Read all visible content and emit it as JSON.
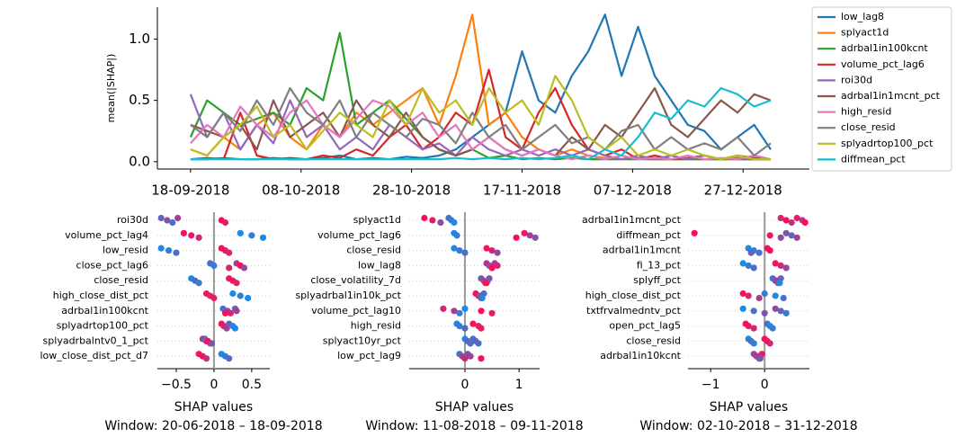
{
  "chart_data": [
    {
      "type": "line",
      "ylabel": "mean(|SHAP|)",
      "x": [
        "18-09-2018",
        "21-09-2018",
        "24-09-2018",
        "27-09-2018",
        "30-09-2018",
        "03-10-2018",
        "06-10-2018",
        "09-10-2018",
        "12-10-2018",
        "15-10-2018",
        "18-10-2018",
        "21-10-2018",
        "24-10-2018",
        "27-10-2018",
        "30-10-2018",
        "02-11-2018",
        "05-11-2018",
        "08-11-2018",
        "11-11-2018",
        "14-11-2018",
        "17-11-2018",
        "20-11-2018",
        "23-11-2018",
        "26-11-2018",
        "29-11-2018",
        "02-12-2018",
        "05-12-2018",
        "08-12-2018",
        "11-12-2018",
        "14-12-2018",
        "17-12-2018",
        "20-12-2018",
        "23-12-2018",
        "26-12-2018",
        "29-12-2018",
        "01-01-2019"
      ],
      "xlim": [
        "12-09-2018",
        "08-01-2019"
      ],
      "xticks": [
        "18-09-2018",
        "08-10-2018",
        "28-10-2018",
        "17-11-2018",
        "07-12-2018",
        "27-12-2018"
      ],
      "ylim": [
        -0.06,
        1.26
      ],
      "yticks": [
        {
          "value": 0,
          "label": "0.0"
        },
        {
          "value": 0.5,
          "label": "0.5"
        },
        {
          "value": 1,
          "label": "1.0"
        }
      ],
      "legend": "outside right",
      "series": [
        {
          "name": "low_lag8",
          "color": "#1f77b4",
          "values": [
            0.02,
            0.02,
            0.03,
            0.02,
            0.02,
            0.03,
            0.02,
            0.02,
            0.03,
            0.05,
            0.02,
            0.03,
            0.02,
            0.04,
            0.03,
            0.05,
            0.1,
            0.2,
            0.3,
            0.4,
            0.9,
            0.5,
            0.4,
            0.7,
            0.9,
            1.2,
            0.7,
            1.1,
            0.7,
            0.5,
            0.3,
            0.25,
            0.1,
            0.2,
            0.3,
            0.1
          ]
        },
        {
          "name": "splyact1d",
          "color": "#ff7f0e",
          "values": [
            0.1,
            0.05,
            0.2,
            0.1,
            0.3,
            0.4,
            0.2,
            0.1,
            0.3,
            0.2,
            0.4,
            0.3,
            0.4,
            0.5,
            0.6,
            0.3,
            0.7,
            1.2,
            0.3,
            0.4,
            0.2,
            0.1,
            0.05,
            0.1,
            0.05,
            0.03,
            0.02,
            0.03,
            0.02,
            0.02,
            0.02,
            0.02,
            0.02,
            0.02,
            0.02,
            0.02
          ]
        },
        {
          "name": "adrbal1in100kcnt",
          "color": "#2ca02c",
          "values": [
            0.2,
            0.5,
            0.4,
            0.3,
            0.35,
            0.4,
            0.3,
            0.6,
            0.5,
            1.05,
            0.3,
            0.4,
            0.5,
            0.35,
            0.2,
            0.1,
            0.05,
            0.1,
            0.03,
            0.05,
            0.02,
            0.03,
            0.02,
            0.03,
            0.02,
            0.02,
            0.02,
            0.02,
            0.02,
            0.02,
            0.02,
            0.02,
            0.02,
            0.02,
            0.02,
            0.02
          ]
        },
        {
          "name": "volume_pct_lag6",
          "color": "#d62728",
          "values": [
            0.02,
            0.03,
            0.02,
            0.4,
            0.05,
            0.02,
            0.03,
            0.02,
            0.05,
            0.03,
            0.1,
            0.05,
            0.2,
            0.3,
            0.1,
            0.2,
            0.4,
            0.3,
            0.75,
            0.2,
            0.1,
            0.4,
            0.6,
            0.3,
            0.1,
            0.05,
            0.1,
            0.02,
            0.05,
            0.02,
            0.03,
            0.05,
            0.02,
            0.05,
            0.03,
            0.02
          ]
        },
        {
          "name": "roi30d",
          "color": "#9467bd",
          "values": [
            0.55,
            0.2,
            0.4,
            0.1,
            0.3,
            0.15,
            0.5,
            0.2,
            0.3,
            0.1,
            0.2,
            0.1,
            0.3,
            0.2,
            0.1,
            0.15,
            0.05,
            0.2,
            0.1,
            0.05,
            0.1,
            0.05,
            0.1,
            0.05,
            0.1,
            0.05,
            0.02,
            0.05,
            0.02,
            0.05,
            0.02,
            0.05,
            0.02,
            0.03,
            0.02,
            0.02
          ]
        },
        {
          "name": "adrbal1in1mcnt_pct",
          "color": "#8c564b",
          "values": [
            0.3,
            0.25,
            0.2,
            0.3,
            0.1,
            0.5,
            0.2,
            0.3,
            0.4,
            0.2,
            0.5,
            0.3,
            0.2,
            0.4,
            0.2,
            0.1,
            0.05,
            0.1,
            0.2,
            0.1,
            0.05,
            0.1,
            0.05,
            0.2,
            0.1,
            0.3,
            0.2,
            0.4,
            0.6,
            0.3,
            0.2,
            0.35,
            0.5,
            0.4,
            0.55,
            0.5
          ]
        },
        {
          "name": "high_resid",
          "color": "#e377c2",
          "values": [
            0.15,
            0.3,
            0.2,
            0.45,
            0.3,
            0.2,
            0.4,
            0.5,
            0.3,
            0.2,
            0.35,
            0.5,
            0.45,
            0.3,
            0.4,
            0.2,
            0.3,
            0.1,
            0.2,
            0.1,
            0.05,
            0.1,
            0.05,
            0.02,
            0.05,
            0.02,
            0.05,
            0.02,
            0.03,
            0.02,
            0.05,
            0.02,
            0.03,
            0.02,
            0.05,
            0.02
          ]
        },
        {
          "name": "close_resid",
          "color": "#7f7f7f",
          "values": [
            0.3,
            0.2,
            0.4,
            0.25,
            0.5,
            0.3,
            0.6,
            0.4,
            0.3,
            0.5,
            0.2,
            0.4,
            0.3,
            0.2,
            0.35,
            0.3,
            0.15,
            0.4,
            0.2,
            0.3,
            0.1,
            0.2,
            0.3,
            0.15,
            0.2,
            0.1,
            0.25,
            0.3,
            0.1,
            0.2,
            0.1,
            0.15,
            0.1,
            0.2,
            0.05,
            0.15
          ]
        },
        {
          "name": "splyadrtop100_pct",
          "color": "#bcbd22",
          "values": [
            0.1,
            0.05,
            0.2,
            0.3,
            0.45,
            0.2,
            0.3,
            0.1,
            0.25,
            0.4,
            0.3,
            0.2,
            0.5,
            0.3,
            0.6,
            0.4,
            0.5,
            0.3,
            0.6,
            0.4,
            0.5,
            0.3,
            0.7,
            0.5,
            0.2,
            0.1,
            0.2,
            0.05,
            0.1,
            0.05,
            0.1,
            0.05,
            0.02,
            0.05,
            0.02,
            0.02
          ]
        },
        {
          "name": "diffmean_pct",
          "color": "#17becf",
          "values": [
            0.02,
            0.02,
            0.02,
            0.02,
            0.02,
            0.02,
            0.02,
            0.02,
            0.02,
            0.02,
            0.02,
            0.02,
            0.02,
            0.02,
            0.02,
            0.02,
            0.03,
            0.02,
            0.03,
            0.02,
            0.03,
            0.02,
            0.03,
            0.05,
            0.02,
            0.1,
            0.05,
            0.2,
            0.4,
            0.35,
            0.5,
            0.45,
            0.6,
            0.55,
            0.45,
            0.5
          ]
        }
      ]
    },
    {
      "type": "beeswarm",
      "xlabel": "SHAP values",
      "subtitle": "Window: 20-06-2018 – 18-09-2018",
      "xlim": [
        -0.75,
        0.74
      ],
      "xticks": [
        {
          "value": -0.5,
          "label": "−0.5"
        },
        0.0,
        0.5
      ],
      "colormap": [
        "#1e88e5",
        "#ff0d57"
      ],
      "rows": [
        {
          "name": "roi30d",
          "shap": [
            -0.7,
            -0.62,
            -0.55,
            -0.48,
            0.1,
            0.15
          ],
          "levels": [
            0.3,
            0.5,
            0.2,
            0.6,
            1,
            0.9
          ]
        },
        {
          "name": "volume_pct_lag4",
          "shap": [
            -0.4,
            -0.3,
            -0.2,
            0.35,
            0.5,
            0.65
          ],
          "levels": [
            1,
            0.9,
            0.8,
            0,
            0.1,
            0
          ]
        },
        {
          "name": "low_resid",
          "shap": [
            -0.7,
            -0.6,
            -0.5,
            0.1,
            0.15,
            0.2
          ],
          "levels": [
            0,
            0.1,
            0.2,
            1,
            0.9,
            0.8
          ]
        },
        {
          "name": "close_pct_lag6",
          "shap": [
            -0.05,
            0.0,
            0.2,
            0.3,
            0.35,
            0.4
          ],
          "levels": [
            0.2,
            0.1,
            0.8,
            0.6,
            1,
            0.5
          ]
        },
        {
          "name": "close_resid",
          "shap": [
            -0.3,
            -0.25,
            -0.2,
            0.2,
            0.25,
            0.3
          ],
          "levels": [
            0,
            0.2,
            0.1,
            0.9,
            1,
            0.8
          ]
        },
        {
          "name": "high_close_dist_pct",
          "shap": [
            -0.1,
            -0.05,
            0.0,
            0.25,
            0.35,
            0.45
          ],
          "levels": [
            1,
            0.8,
            0.9,
            0,
            0.1,
            0
          ]
        },
        {
          "name": "adrbal1in100kcnt",
          "shap": [
            0.12,
            0.18,
            0.22,
            0.28,
            0.3,
            0.15
          ],
          "levels": [
            0.2,
            0.5,
            0.8,
            0.3,
            0.6,
            1
          ]
        },
        {
          "name": "splyadrtop100_pct",
          "shap": [
            0.1,
            0.13,
            0.17,
            0.2,
            0.25,
            0.28
          ],
          "levels": [
            1,
            0.8,
            0.6,
            0.3,
            0.1,
            0
          ]
        },
        {
          "name": "splyadrbalntv0_1_pct",
          "shap": [
            -0.15,
            -0.1,
            -0.05,
            -0.12,
            -0.08,
            -0.03
          ],
          "levels": [
            0.6,
            0.8,
            0.5,
            0.3,
            1,
            0.4
          ]
        },
        {
          "name": "low_close_dist_pct_d7",
          "shap": [
            -0.2,
            -0.15,
            -0.1,
            0.1,
            0.15,
            0.2
          ],
          "levels": [
            0.9,
            1,
            0.7,
            0,
            0.1,
            0.2
          ]
        }
      ]
    },
    {
      "type": "beeswarm",
      "xlabel": "SHAP values",
      "subtitle": "Window: 11-08-2018 – 09-11-2018",
      "xlim": [
        -1.03,
        1.38
      ],
      "xticks": [
        0,
        1
      ],
      "colormap": [
        "#1e88e5",
        "#ff0d57"
      ],
      "rows": [
        {
          "name": "splyact1d",
          "shap": [
            -0.75,
            -0.6,
            -0.45,
            -0.3,
            -0.25,
            -0.2
          ],
          "levels": [
            1,
            0.9,
            0.5,
            0.2,
            0.1,
            0
          ]
        },
        {
          "name": "volume_pct_lag6",
          "shap": [
            -0.2,
            -0.15,
            0.95,
            1.1,
            1.2,
            1.3
          ],
          "levels": [
            0,
            0.1,
            1,
            0.9,
            0.6,
            0.4
          ]
        },
        {
          "name": "close_resid",
          "shap": [
            -0.2,
            -0.1,
            0.0,
            0.4,
            0.5,
            0.6
          ],
          "levels": [
            0,
            0.1,
            0.2,
            1,
            0.8,
            0.5
          ]
        },
        {
          "name": "low_lag8",
          "shap": [
            0.4,
            0.45,
            0.5,
            0.55,
            0.6,
            0.5
          ],
          "levels": [
            0.7,
            0.5,
            0.9,
            0.6,
            0.8,
            1
          ]
        },
        {
          "name": "close_volatility_7d",
          "shap": [
            0.3,
            0.35,
            0.4,
            0.45,
            0.42,
            0.38
          ],
          "levels": [
            0.4,
            0.6,
            0.8,
            0.5,
            0.3,
            1
          ]
        },
        {
          "name": "splyadrbal1in10k_pct",
          "shap": [
            0.2,
            0.25,
            0.3,
            0.35,
            0.28,
            0.32
          ],
          "levels": [
            1,
            0.8,
            0.6,
            0.2,
            0.4,
            0
          ]
        },
        {
          "name": "volume_pct_lag10",
          "shap": [
            -0.4,
            -0.2,
            -0.1,
            0.0,
            0.3,
            0.5
          ],
          "levels": [
            0.8,
            0.6,
            0.1,
            0.0,
            1,
            0.9
          ]
        },
        {
          "name": "high_resid",
          "shap": [
            -0.15,
            -0.1,
            0.0,
            0.15,
            0.25,
            0.3
          ],
          "levels": [
            0,
            0.1,
            0.2,
            1,
            0.8,
            0.9
          ]
        },
        {
          "name": "splyact10yr_pct",
          "shap": [
            0.0,
            0.05,
            0.1,
            0.15,
            0.2,
            0.25
          ],
          "levels": [
            0,
            0.3,
            0.2,
            0.1,
            0.4,
            0.2
          ]
        },
        {
          "name": "low_pct_lag9",
          "shap": [
            -0.1,
            -0.05,
            0.0,
            0.05,
            0.1,
            0.3
          ],
          "levels": [
            0.2,
            0.5,
            0.8,
            0.4,
            0.6,
            1
          ]
        }
      ]
    },
    {
      "type": "beeswarm",
      "xlabel": "SHAP values",
      "subtitle": "Window: 02-10-2018 – 31-12-2018",
      "xlim": [
        -1.42,
        0.83
      ],
      "xticks": [
        {
          "value": -1,
          "label": "−1"
        },
        0
      ],
      "colormap": [
        "#1e88e5",
        "#ff0d57"
      ],
      "rows": [
        {
          "name": "adrbal1in1mcnt_pct",
          "shap": [
            0.3,
            0.4,
            0.5,
            0.6,
            0.7,
            0.75
          ],
          "levels": [
            0.8,
            1,
            0.7,
            0.9,
            0.6,
            1
          ]
        },
        {
          "name": "diffmean_pct",
          "shap": [
            -1.3,
            0.1,
            0.3,
            0.4,
            0.5,
            0.6
          ],
          "levels": [
            1,
            0.9,
            0.5,
            0.4,
            0.3,
            0.6
          ]
        },
        {
          "name": "adrbal1in1mcnt",
          "shap": [
            -0.3,
            -0.2,
            -0.1,
            0.05,
            0.1,
            -0.25
          ],
          "levels": [
            0,
            0.1,
            0.2,
            0.9,
            1,
            0.3
          ]
        },
        {
          "name": "fi_13_pct",
          "shap": [
            -0.4,
            -0.3,
            -0.2,
            0.2,
            0.3,
            0.4
          ],
          "levels": [
            0,
            0.1,
            0.2,
            1,
            0.8,
            0.5
          ]
        },
        {
          "name": "splyff_pct",
          "shap": [
            0.15,
            0.2,
            0.25,
            0.3,
            0.22,
            0.28
          ],
          "levels": [
            0.2,
            0.1,
            0.5,
            0.3,
            0.6,
            0
          ]
        },
        {
          "name": "high_close_dist_pct",
          "shap": [
            -0.4,
            -0.3,
            -0.1,
            0.0,
            0.2,
            0.35
          ],
          "levels": [
            1,
            0.8,
            0.6,
            0.1,
            0,
            0.2
          ]
        },
        {
          "name": "txtfrvalmedntv_pct",
          "shap": [
            -0.4,
            -0.2,
            0.0,
            0.2,
            0.3,
            0.4
          ],
          "levels": [
            0,
            0.2,
            0.4,
            0.5,
            0.3,
            0.1
          ]
        },
        {
          "name": "open_pct_lag5",
          "shap": [
            -0.35,
            -0.3,
            -0.2,
            0.05,
            0.1,
            0.15
          ],
          "levels": [
            1,
            0.9,
            0.8,
            0.2,
            0,
            0.1
          ]
        },
        {
          "name": "close_resid",
          "shap": [
            -0.3,
            -0.25,
            -0.2,
            0.0,
            0.05,
            0.1
          ],
          "levels": [
            0,
            0.2,
            0.1,
            1,
            0.9,
            0.8
          ]
        },
        {
          "name": "adrbal1in10kcnt",
          "shap": [
            -0.2,
            -0.15,
            -0.1,
            -0.05,
            -0.12,
            -0.08
          ],
          "levels": [
            0.5,
            0.7,
            0.3,
            0.9,
            0.6,
            0.4
          ]
        }
      ]
    }
  ]
}
